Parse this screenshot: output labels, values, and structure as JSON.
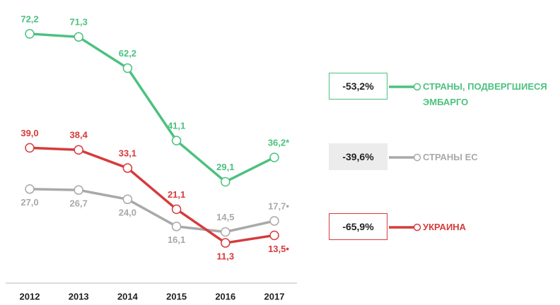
{
  "chart_data": {
    "type": "line",
    "categories": [
      "2012",
      "2013",
      "2014",
      "2015",
      "2016",
      "2017"
    ],
    "ylim": [
      0,
      80
    ],
    "series": [
      {
        "name": "СТРАНЫ, ПОДВЕРГШИЕСЯ ЭМБАРГО",
        "color": "#4cc17f",
        "change": "-53,2%",
        "values": [
          72.2,
          71.3,
          62.2,
          41.1,
          29.1,
          36.2
        ],
        "value_labels": [
          "72,2",
          "71,3",
          "62,2",
          "41,1",
          "29,1",
          "36,2*"
        ]
      },
      {
        "name": "СТРАНЫ ЕС",
        "color": "#a9a9a9",
        "change": "-39,6%",
        "values": [
          27.0,
          26.7,
          24.0,
          16.1,
          14.5,
          17.7
        ],
        "value_labels": [
          "27,0",
          "26,7",
          "24,0",
          "16,1",
          "14,5",
          "17,7•"
        ]
      },
      {
        "name": "УКРАИНА",
        "color": "#d63b3b",
        "change": "-65,9%",
        "values": [
          39.0,
          38.4,
          33.1,
          21.1,
          11.3,
          13.5
        ],
        "value_labels": [
          "39,0",
          "38,4",
          "33,1",
          "21,1",
          "11,3",
          "13,5•"
        ]
      }
    ]
  }
}
